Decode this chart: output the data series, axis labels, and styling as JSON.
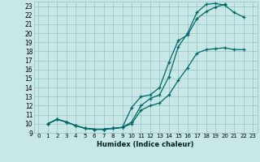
{
  "xlabel": "Humidex (Indice chaleur)",
  "bg_color": "#c8e8e8",
  "grid_color": "#a0c8c8",
  "line_color": "#006868",
  "xlim": [
    -0.5,
    23.5
  ],
  "ylim": [
    9,
    23.5
  ],
  "xticks": [
    0,
    1,
    2,
    3,
    4,
    5,
    6,
    7,
    8,
    9,
    10,
    11,
    12,
    13,
    14,
    15,
    16,
    17,
    18,
    19,
    20,
    21,
    22,
    23
  ],
  "yticks": [
    9,
    10,
    11,
    12,
    13,
    14,
    15,
    16,
    17,
    18,
    19,
    20,
    21,
    22,
    23
  ],
  "curve1_x": [
    1,
    2,
    3,
    4,
    5,
    6,
    7,
    8,
    9,
    10,
    11,
    12,
    13,
    14,
    15,
    16,
    17,
    18,
    19,
    20,
    21,
    22
  ],
  "curve1_y": [
    10,
    10.5,
    10.2,
    9.8,
    9.5,
    9.4,
    9.4,
    9.5,
    9.6,
    10.2,
    12.0,
    12.8,
    13.2,
    15.2,
    18.5,
    20.0,
    22.3,
    23.2,
    23.3,
    23.1,
    22.3,
    21.8
  ],
  "curve2_x": [
    1,
    2,
    3,
    4,
    5,
    6,
    7,
    8,
    9,
    10,
    11,
    12,
    13,
    14,
    15,
    16,
    17,
    18,
    19,
    20
  ],
  "curve2_y": [
    10,
    10.5,
    10.2,
    9.8,
    9.5,
    9.4,
    9.4,
    9.5,
    9.6,
    11.8,
    13.0,
    13.2,
    14.0,
    16.8,
    19.2,
    19.8,
    21.6,
    22.4,
    22.9,
    23.2
  ],
  "curve3_x": [
    1,
    2,
    3,
    4,
    5,
    6,
    7,
    8,
    9,
    10,
    11,
    12,
    13,
    14,
    15,
    16,
    17,
    18,
    19,
    20,
    21,
    22
  ],
  "curve3_y": [
    10,
    10.5,
    10.2,
    9.8,
    9.5,
    9.4,
    9.4,
    9.5,
    9.6,
    10.0,
    11.5,
    12.0,
    12.3,
    13.2,
    14.8,
    16.2,
    17.8,
    18.2,
    18.3,
    18.4,
    18.2,
    18.2
  ]
}
